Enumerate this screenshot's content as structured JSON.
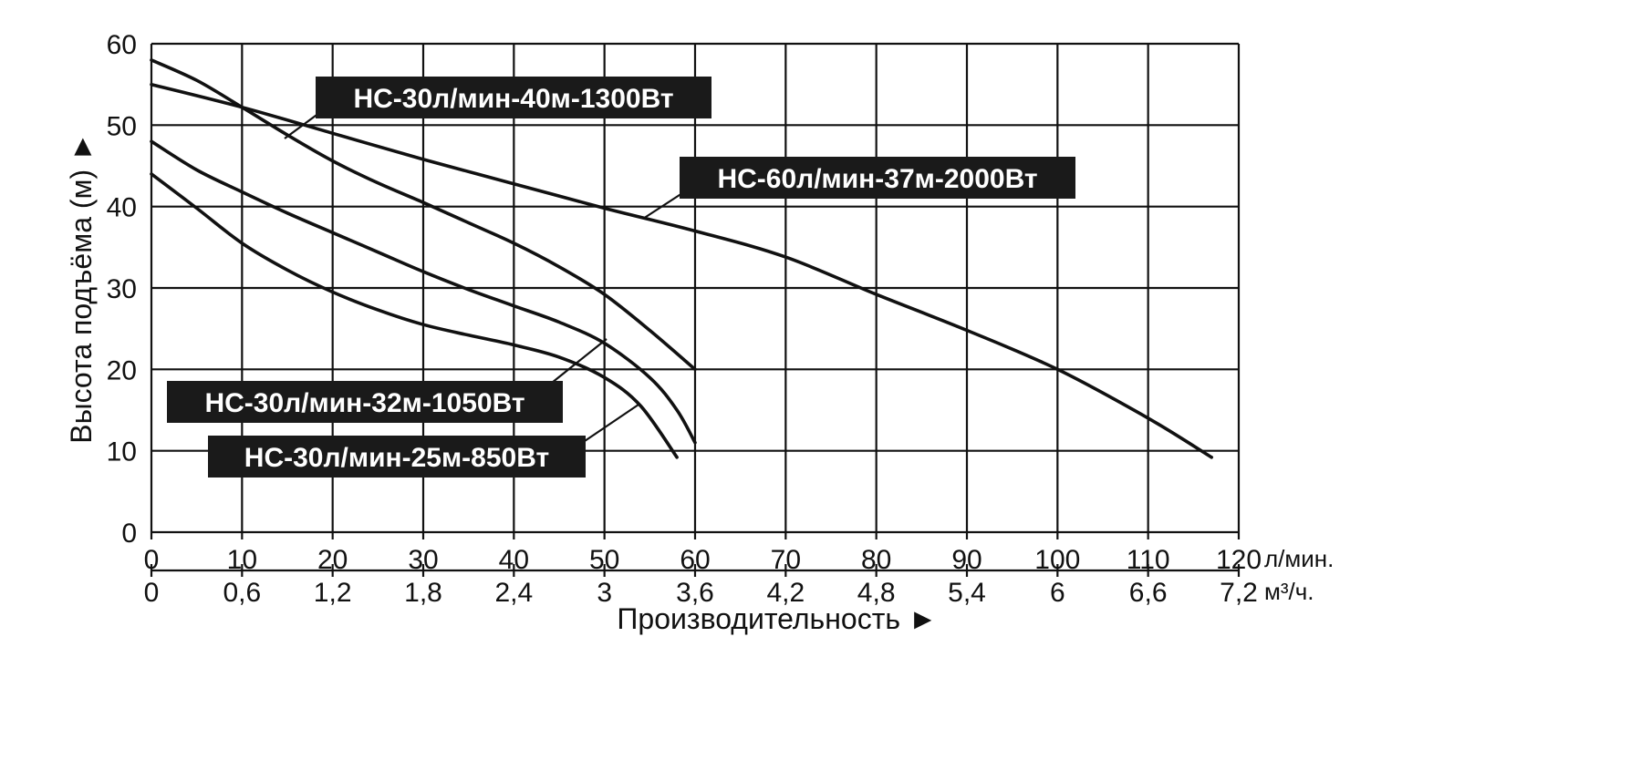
{
  "chart_data": {
    "type": "line",
    "xlabel": "Производительность ►",
    "ylabel": "Высота подъёма (м) ►",
    "x_unit": "л/мин.",
    "x2_unit": "м³/ч.",
    "xlim": [
      0,
      120
    ],
    "ylim": [
      0,
      60
    ],
    "grid": true,
    "x_ticks": [
      "0",
      "10",
      "20",
      "30",
      "40",
      "50",
      "60",
      "70",
      "80",
      "90",
      "100",
      "110",
      "120"
    ],
    "x2_ticks": [
      "0",
      "0,6",
      "1,2",
      "1,8",
      "2,4",
      "3",
      "3,6",
      "4,2",
      "4,8",
      "5,4",
      "6",
      "6,6",
      "7,2"
    ],
    "y_ticks": [
      "0",
      "10",
      "20",
      "30",
      "40",
      "50",
      "60"
    ],
    "series": [
      {
        "name": "НС-30л/мин-40м-1300Вт",
        "points": [
          [
            0,
            58
          ],
          [
            5,
            55.5
          ],
          [
            10,
            52.2
          ],
          [
            15,
            48.8
          ],
          [
            20,
            45.6
          ],
          [
            25,
            42.9
          ],
          [
            30,
            40.5
          ],
          [
            35,
            38
          ],
          [
            40,
            35.5
          ],
          [
            45,
            32.6
          ],
          [
            50,
            29.2
          ],
          [
            55,
            24.8
          ],
          [
            60,
            20
          ]
        ]
      },
      {
        "name": "НС-60л/мин-37м-2000Вт",
        "points": [
          [
            0,
            55
          ],
          [
            10,
            52.2
          ],
          [
            20,
            49
          ],
          [
            30,
            45.8
          ],
          [
            40,
            42.8
          ],
          [
            50,
            39.8
          ],
          [
            60,
            37
          ],
          [
            70,
            33.8
          ],
          [
            80,
            29.2
          ],
          [
            90,
            24.8
          ],
          [
            100,
            20
          ],
          [
            110,
            14
          ],
          [
            117,
            9.2
          ]
        ]
      },
      {
        "name": "НС-30л/мин-32м-1050Вт",
        "points": [
          [
            0,
            48
          ],
          [
            5,
            44.5
          ],
          [
            10,
            41.8
          ],
          [
            15,
            39.2
          ],
          [
            20,
            36.8
          ],
          [
            25,
            34.4
          ],
          [
            30,
            32
          ],
          [
            35,
            29.8
          ],
          [
            40,
            27.8
          ],
          [
            45,
            25.8
          ],
          [
            50,
            23.2
          ],
          [
            55,
            19
          ],
          [
            58,
            15
          ],
          [
            60,
            11
          ]
        ]
      },
      {
        "name": "НС-30л/мин-25м-850Вт",
        "points": [
          [
            0,
            44
          ],
          [
            5,
            39.8
          ],
          [
            10,
            35.5
          ],
          [
            15,
            32.2
          ],
          [
            20,
            29.5
          ],
          [
            25,
            27.3
          ],
          [
            30,
            25.5
          ],
          [
            35,
            24.2
          ],
          [
            40,
            23
          ],
          [
            45,
            21.5
          ],
          [
            50,
            19
          ],
          [
            54,
            15.5
          ],
          [
            58,
            9.2
          ]
        ]
      }
    ]
  }
}
